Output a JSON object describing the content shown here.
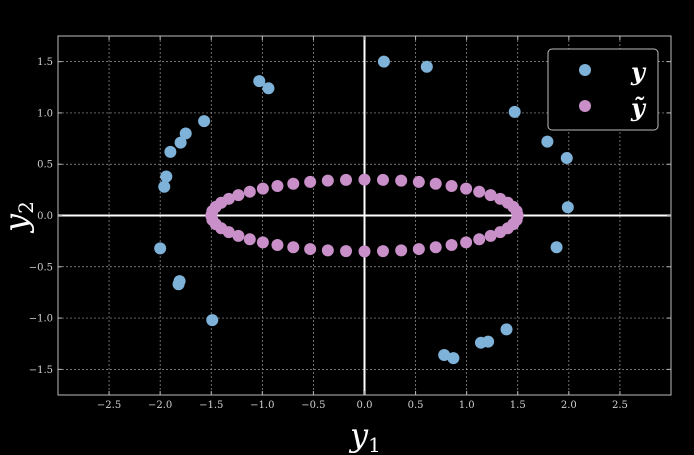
{
  "chart_data": {
    "type": "scatter",
    "xlabel": "y",
    "xlabel_sub": "1",
    "ylabel": "y",
    "ylabel_sub": "2",
    "xlim": [
      -3.0,
      3.0
    ],
    "ylim": [
      -1.75,
      1.75
    ],
    "xticks": [
      -2.5,
      -2.0,
      -1.5,
      -1.0,
      -0.5,
      0.0,
      0.5,
      1.0,
      1.5,
      2.0,
      2.5
    ],
    "yticks": [
      -1.5,
      -1.0,
      -0.5,
      0.0,
      0.5,
      1.0,
      1.5
    ],
    "xtick_labels": [
      "−2.5",
      "−2.0",
      "−1.5",
      "−1.0",
      "−0.5",
      "0.0",
      "0.5",
      "1.0",
      "1.5",
      "2.0",
      "2.5"
    ],
    "ytick_labels": [
      "−1.5",
      "−1.0",
      "−0.5",
      "0.0",
      "0.5",
      "1.0",
      "1.5"
    ],
    "grid": true,
    "legend_position": "top-right",
    "series": [
      {
        "name": "y",
        "color": "#7fb2d8",
        "points": [
          [
            0.19,
            1.5
          ],
          [
            0.61,
            1.45
          ],
          [
            -1.03,
            1.31
          ],
          [
            -0.94,
            1.24
          ],
          [
            -1.57,
            0.92
          ],
          [
            -1.75,
            0.8
          ],
          [
            -1.8,
            0.71
          ],
          [
            -1.9,
            0.62
          ],
          [
            -1.94,
            0.38
          ],
          [
            -1.96,
            0.28
          ],
          [
            -2.0,
            -0.32
          ],
          [
            -1.81,
            -0.64
          ],
          [
            -1.82,
            -0.67
          ],
          [
            -1.49,
            -1.02
          ],
          [
            0.78,
            -1.36
          ],
          [
            0.87,
            -1.39
          ],
          [
            1.14,
            -1.24
          ],
          [
            1.21,
            -1.23
          ],
          [
            1.39,
            -1.11
          ],
          [
            1.47,
            1.01
          ],
          [
            1.79,
            0.72
          ],
          [
            1.98,
            0.56
          ],
          [
            1.99,
            0.08
          ],
          [
            1.88,
            -0.31
          ]
        ]
      },
      {
        "name": "ỹ",
        "color": "#c88fc8",
        "ellipse": {
          "a": 1.5,
          "b": 0.35,
          "count": 52
        }
      }
    ]
  },
  "legend": {
    "labels": [
      "y",
      "ỹ"
    ]
  }
}
